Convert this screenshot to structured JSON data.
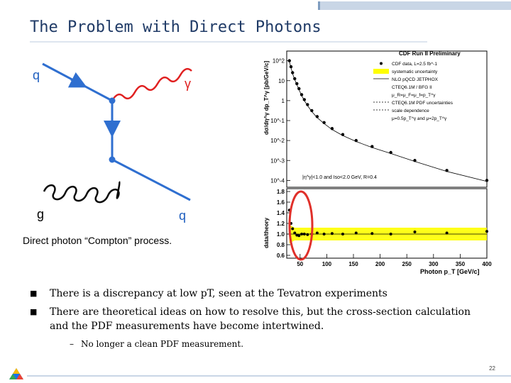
{
  "slide": {
    "title": "The Problem with Direct Photons",
    "page_number": "22"
  },
  "diagram": {
    "label_q_in": "q",
    "label_gamma": "γ",
    "label_g": "g",
    "label_q_out": "q",
    "caption": "Direct photon “Compton” process."
  },
  "bullets": [
    {
      "text": "There is a discrepancy at low pT, seen at the Tevatron experiments"
    },
    {
      "text": "There are theoretical ideas on how to resolve this, but the cross-section calculation and the PDF measurements have become intertwined."
    }
  ],
  "sub_bullet": "No longer a clean PDF measurement.",
  "chart_data": {
    "type": "scatter",
    "title": "CDF Run II Preliminary",
    "ylabel_top": "dσ/dη^γ dp_T^γ [pb/GeV/c]",
    "ylabel_bottom": "data/theory",
    "xlabel": "Photon p_T [GeV/c]",
    "x_ticks": [
      "50",
      "100",
      "150",
      "200",
      "250",
      "300",
      "350",
      "400"
    ],
    "y_ticks_top": [
      "10^2",
      "10",
      "1",
      "10^-1",
      "10^-2",
      "10^-3",
      "10^-4"
    ],
    "y_ticks_bottom": [
      "1.8",
      "1.6",
      "1.4",
      "1.2",
      "1.0",
      "0.8",
      "0.6"
    ],
    "ylim_bottom": [
      0.6,
      1.8
    ],
    "xlim": [
      25,
      400
    ],
    "legend": [
      "CDF data, L=2.5 fb^-1",
      "systematic uncertainty",
      "NLO pQCD JETPHOX",
      "CTEQ6.1M / BFG II",
      "μ_R=μ_F=μ_f=p_T^γ",
      "CTEQ6.1M PDF uncertainties",
      "scale dependence",
      "μ=0.5p_T^γ and μ=2p_T^γ"
    ],
    "annotation": "|η^γ|<1.0 and Iso<2.0 GeV, R=0.4",
    "x": [
      30,
      33,
      36,
      40,
      44,
      48,
      53,
      58,
      64,
      72,
      82,
      95,
      110,
      130,
      155,
      185,
      220,
      265,
      325,
      400
    ],
    "y_log10": [
      2.0,
      1.7,
      1.4,
      1.1,
      0.85,
      0.6,
      0.3,
      0.05,
      -0.2,
      -0.5,
      -0.8,
      -1.1,
      -1.4,
      -1.7,
      -2.0,
      -2.3,
      -2.6,
      -3.0,
      -3.5,
      -4.0
    ],
    "ratio": [
      1.45,
      1.2,
      1.1,
      1.02,
      0.98,
      0.97,
      1.0,
      1.0,
      0.99,
      1.0,
      1.02,
      1.0,
      1.01,
      1.0,
      1.02,
      1.01,
      1.0,
      1.04,
      1.02,
      1.05
    ],
    "highlight": "red ellipse around low p_T ratio points",
    "colors": {
      "band": "#ffff00",
      "highlight": "#e0302a",
      "points": "#000000"
    }
  }
}
